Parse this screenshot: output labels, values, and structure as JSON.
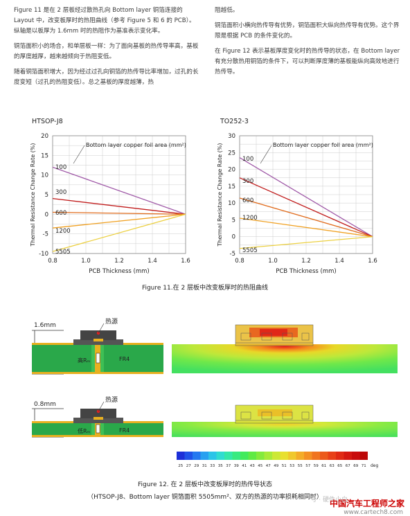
{
  "text": {
    "left": [
      "Figure 11 是在 2 层板经过散热孔向 Bottom layer 铜箔连接的 Layout 中，改变板厚时的热阻曲线（参考 Figure 5 和 6 的 PCB）。纵轴是以板厚为 1.6mm 时的热阻作为基准表示变化率。",
      "铜箔面积小的场合，和单层板一样：为了面向基板的热传导率高，基板的厚度越厚，越来越倾向于热阻变低。",
      "随着铜箔面积增大，因为经过过孔向铜箔的热传导比率增加，过孔的长度变短（过孔的热阻变低）。总之基板的厚度越薄，热"
    ],
    "right": [
      "阻越低。",
      "铜箔面积小横向热传导有优势，铜箔面积大纵向热传导有优势。这个界限是根据 PCB 的条件变化的。",
      "在 Figure 12 表示基板厚度变化时的热传导的状态，在 Bottom layer 有充分散热用铜箔的条件下，可以判断厚度薄的基板能纵向高效地进行热传导。"
    ]
  },
  "chart_data": [
    {
      "type": "line",
      "title": "HTSOP-J8",
      "xlabel": "PCB Thickness (mm)",
      "ylabel": "Thermal Resistance Change Rate (%)",
      "legend_title": "Bottom layer copper foil area (mm²)",
      "xlim": [
        0.8,
        1.6
      ],
      "ylim": [
        -10,
        20
      ],
      "xticks": [
        "0.8",
        "1.2",
        "1.6"
      ],
      "xticks_minor": [
        "1.0",
        "1.4"
      ],
      "yticks": [
        "20",
        "15",
        "10",
        "5",
        "0",
        "-5",
        "-10"
      ],
      "x": [
        0.8,
        1.6
      ],
      "series": [
        {
          "name": "100",
          "color": "#a05aa8",
          "values": [
            12,
            0
          ]
        },
        {
          "name": "300",
          "color": "#c01a1a",
          "values": [
            4,
            0
          ]
        },
        {
          "name": "600",
          "color": "#e06a1a",
          "values": [
            0.5,
            0
          ]
        },
        {
          "name": "1200",
          "color": "#f0a020",
          "values": [
            -3.5,
            0
          ]
        },
        {
          "name": "5505",
          "color": "#ecd040",
          "values": [
            -9.5,
            0
          ]
        }
      ]
    },
    {
      "type": "line",
      "title": "TO252-3",
      "xlabel": "PCB Thickness (mm)",
      "ylabel": "Thermal Resistance Change Rate (%)",
      "legend_title": "Bottom layer copper foil area (mm²)",
      "xlim": [
        0.8,
        1.6
      ],
      "ylim": [
        -5,
        30
      ],
      "xticks": [
        "0.8",
        "1.2",
        "1.6"
      ],
      "xticks_minor": [
        "1.0",
        "1.4"
      ],
      "yticks": [
        "30",
        "25",
        "20",
        "15",
        "10",
        "5",
        "0",
        "-5"
      ],
      "x": [
        0.8,
        1.6
      ],
      "series": [
        {
          "name": "100",
          "color": "#a05aa8",
          "values": [
            23.5,
            0
          ]
        },
        {
          "name": "300",
          "color": "#c01a1a",
          "values": [
            17.5,
            0
          ]
        },
        {
          "name": "600",
          "color": "#e06a1a",
          "values": [
            11.5,
            0
          ]
        },
        {
          "name": "1200",
          "color": "#f0a020",
          "values": [
            5.5,
            0
          ]
        },
        {
          "name": "5505",
          "color": "#ecd040",
          "values": [
            -3.5,
            0
          ]
        }
      ]
    }
  ],
  "fig11_caption": "Figure 11.在 2 层板中改变板厚时的热阻曲线",
  "fig12": {
    "top_thickness": "1.6mm",
    "bottom_thickness": "0.8mm",
    "heat_source": "热源",
    "high_r": "高Rₘ",
    "low_r": "低Rₘ",
    "fr4": "FR4",
    "colorbar_ticks": [
      "25",
      "27",
      "29",
      "31",
      "33",
      "35",
      "37",
      "39",
      "41",
      "43",
      "45",
      "47",
      "49",
      "51",
      "53",
      "55",
      "57",
      "59",
      "61",
      "63",
      "65",
      "67",
      "69",
      "71"
    ],
    "colorbar_unit": "deg",
    "caption_line1": "Figure 12. 在 2 层板中改变板厚时的热传导状态",
    "caption_line2": "（HTSOP-J8、Bottom layer 铜箔面积 5505mm²、双方的热源的功率损耗相同时）"
  },
  "watermark": "中国汽车工程师之家",
  "watermark_url": "www.cartech8.com",
  "watermark_overlay": "号 · 硬件小白"
}
